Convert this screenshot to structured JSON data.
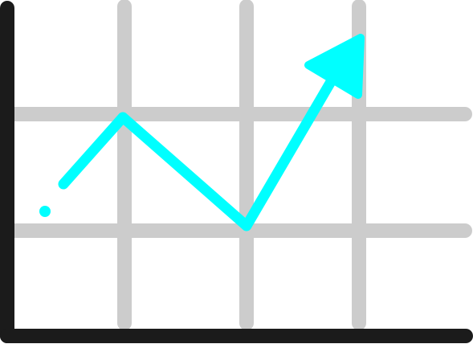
{
  "icon": {
    "name": "line-chart-trending-up-icon",
    "colors": {
      "background": "#ffffff",
      "axis": "#1b1b1b",
      "grid": "#cccccc",
      "trend_line": "#00ffff"
    }
  }
}
